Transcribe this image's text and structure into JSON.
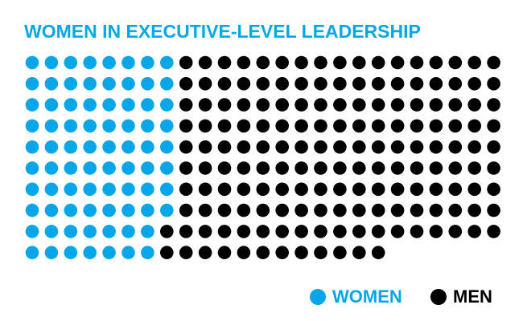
{
  "chart_data": {
    "type": "waffle",
    "title": "WOMEN IN EXECUTIVE-LEVEL LEADERSHIP",
    "series": [
      {
        "name": "WOMEN",
        "color": "#06a6e8",
        "values": [
          78
        ]
      },
      {
        "name": "MEN",
        "color": "#000000",
        "values": [
          166
        ]
      }
    ]
  }
}
